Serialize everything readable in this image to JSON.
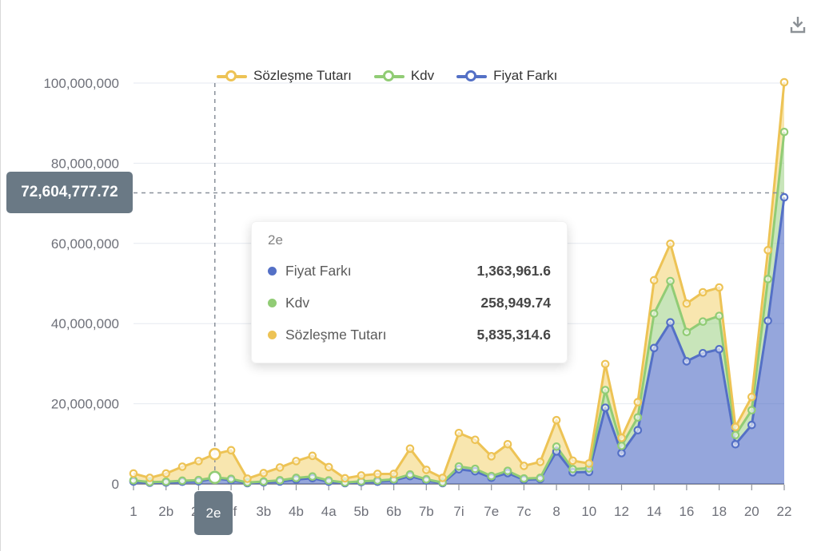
{
  "legend": {
    "items": [
      {
        "label": "Sözleşme Tutarı",
        "color": "#EDC355"
      },
      {
        "label": "Kdv",
        "color": "#91CC75"
      },
      {
        "label": "Fiyat Farkı",
        "color": "#5470C6"
      }
    ]
  },
  "chart_data": {
    "type": "area",
    "stacked": true,
    "grid": true,
    "legend_position": "top",
    "ylim": [
      0,
      100000000
    ],
    "y_ticks": [
      "0",
      "20,000,000",
      "40,000,000",
      "60,000,000",
      "80,000,000",
      "100,000,000"
    ],
    "x_labels": [
      "1",
      "",
      "2b",
      "",
      "2d",
      "2e",
      "2f",
      "",
      "3b",
      "",
      "4b",
      "",
      "4a",
      "",
      "5b",
      "",
      "6b",
      "",
      "7b",
      "",
      "7i",
      "",
      "7e",
      "",
      "7c",
      "",
      "8",
      "",
      "10",
      "",
      "12",
      "",
      "14",
      "",
      "16",
      "",
      "18",
      "",
      "20",
      "",
      "22"
    ],
    "series": [
      {
        "name": "Fiyat Farkı",
        "color": "#5470C6",
        "fill": "rgba(84,112,198,0.62)",
        "values": [
          600000,
          300000,
          350000,
          550000,
          650000,
          1363961.6,
          950000,
          200000,
          400000,
          600000,
          1100000,
          1450000,
          550000,
          200000,
          450000,
          550000,
          850000,
          1950000,
          850000,
          200000,
          3650000,
          3150000,
          1550000,
          2700000,
          1050000,
          1200000,
          8100000,
          2900000,
          3000000,
          19000000,
          7700000,
          13400000,
          33900000,
          40300000,
          30600000,
          32600000,
          33600000,
          9900000,
          14700000,
          40700000,
          71500000
        ]
      },
      {
        "name": "Kdv",
        "color": "#91CC75",
        "fill": "rgba(145,204,117,0.5)",
        "values": [
          300000,
          150000,
          200000,
          250000,
          300000,
          258949.74,
          300000,
          150000,
          200000,
          300000,
          400000,
          400000,
          300000,
          150000,
          200000,
          300000,
          300000,
          400000,
          300000,
          150000,
          700000,
          600000,
          400000,
          550000,
          300000,
          300000,
          1200000,
          800000,
          900000,
          4400000,
          1800000,
          3200000,
          8600000,
          10300000,
          7300000,
          7900000,
          8300000,
          2300000,
          3700000,
          10400000,
          16300000
        ]
      },
      {
        "name": "Sözleşme Tutarı",
        "color": "#EDC355",
        "fill": "rgba(242,205,96,0.5)",
        "values": [
          1700000,
          1050000,
          2050000,
          3500000,
          4750000,
          5835314.6,
          7150000,
          950000,
          2100000,
          3200000,
          4200000,
          5150000,
          3350000,
          1050000,
          1450000,
          1650000,
          1350000,
          6450000,
          2350000,
          1150000,
          8350000,
          7250000,
          4950000,
          6650000,
          3150000,
          4000000,
          6600000,
          2100000,
          1200000,
          6500000,
          2000000,
          3800000,
          8300000,
          9300000,
          7100000,
          7300000,
          7100000,
          2000000,
          3300000,
          7200000,
          12400000
        ]
      }
    ],
    "axis_pointer": {
      "category": "2e",
      "category_index": 5,
      "value": 72604777.72,
      "value_label": "72,604,777.72"
    },
    "tooltip": {
      "title": "2e",
      "rows": [
        {
          "label": "Fiyat Farkı",
          "value": "1,363,961.6",
          "color": "#5470C6"
        },
        {
          "label": "Kdv",
          "value": "258,949.74",
          "color": "#91CC75"
        },
        {
          "label": "Sözleşme Tutarı",
          "value": "5,835,314.6",
          "color": "#EDC355"
        }
      ]
    }
  }
}
